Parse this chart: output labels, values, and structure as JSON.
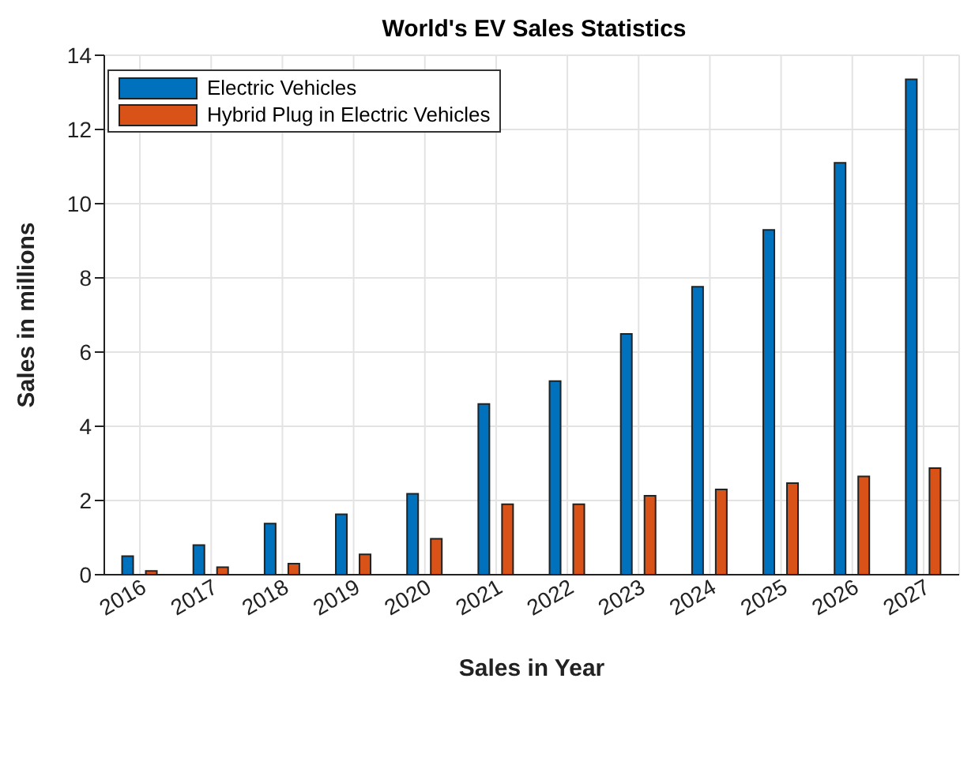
{
  "chart_data": {
    "type": "bar",
    "title": "World's EV Sales Statistics",
    "xlabel": "Sales in Year",
    "ylabel": "Sales in millions",
    "categories": [
      "2016",
      "2017",
      "2018",
      "2019",
      "2020",
      "2021",
      "2022",
      "2023",
      "2024",
      "2025",
      "2026",
      "2027"
    ],
    "series": [
      {
        "name": "Electric Vehicles",
        "color": "#0072bd",
        "values": [
          0.5,
          0.8,
          1.38,
          1.63,
          2.18,
          4.6,
          5.22,
          6.49,
          7.76,
          9.29,
          11.1,
          13.35
        ]
      },
      {
        "name": "Hybrid Plug in Electric Vehicles",
        "color": "#d95319",
        "values": [
          0.1,
          0.2,
          0.3,
          0.55,
          0.97,
          1.9,
          1.9,
          2.13,
          2.3,
          2.47,
          2.65,
          2.87
        ]
      }
    ],
    "ylim": [
      0,
      14
    ],
    "yticks": [
      0,
      2,
      4,
      6,
      8,
      10,
      12,
      14
    ],
    "grid": true,
    "legend": "top left"
  }
}
